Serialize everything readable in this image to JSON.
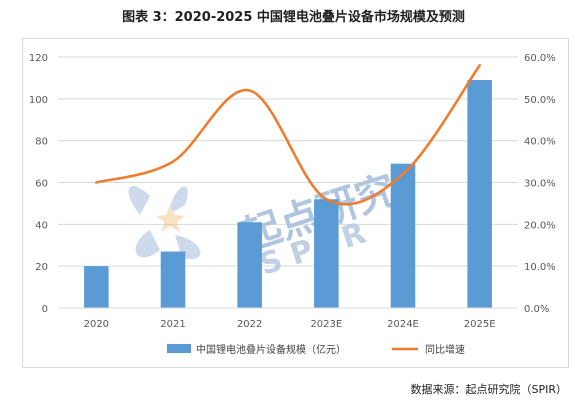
{
  "title": "图表 3：2020-2025 中国锂电池叠片设备市场规模及预测",
  "source": "数据来源：起点研究院（SPIR）",
  "watermark": {
    "chinese": "起点研究",
    "latin": "S P I R"
  },
  "colors": {
    "bar": "#5b9bd5",
    "line": "#ed7d31",
    "grid": "#d9d9d9",
    "axis_text": "#595959"
  },
  "chart_data": {
    "type": "bar",
    "categories": [
      "2020",
      "2021",
      "2022",
      "2023E",
      "2024E",
      "2025E"
    ],
    "series": [
      {
        "name": "中国锂电池叠片设备规模（亿元）",
        "type": "bar",
        "axis": "left",
        "values": [
          20,
          27,
          41,
          52,
          69,
          109
        ]
      },
      {
        "name": "同比增速",
        "type": "line",
        "smooth": true,
        "axis": "right",
        "values": [
          0.3,
          0.35,
          0.52,
          0.26,
          0.32,
          0.58
        ]
      }
    ],
    "left_axis": {
      "ylim": [
        0,
        120
      ],
      "ticks": [
        "0",
        "20",
        "40",
        "60",
        "80",
        "100",
        "120"
      ]
    },
    "right_axis": {
      "ylim": [
        0,
        0.6
      ],
      "ticks": [
        "0.0%",
        "10.0%",
        "20.0%",
        "30.0%",
        "40.0%",
        "50.0%",
        "60.0%"
      ]
    },
    "grid": true,
    "legend_position": "bottom"
  }
}
